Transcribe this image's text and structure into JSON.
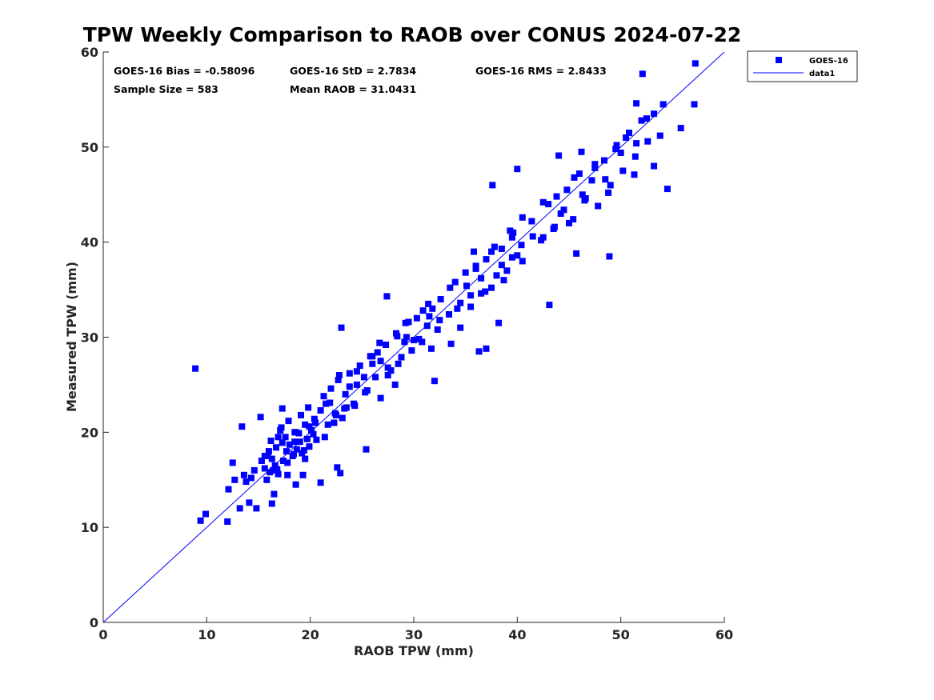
{
  "chart_data": {
    "type": "scatter",
    "title": "TPW Weekly Comparison to RAOB over CONUS 2024-07-22",
    "xlabel": "RAOB TPW (mm)",
    "ylabel": "Measured TPW (mm)",
    "xlim": [
      0,
      60
    ],
    "ylim": [
      0,
      60
    ],
    "xticks": [
      "0",
      "10",
      "20",
      "30",
      "40",
      "50",
      "60"
    ],
    "yticks": [
      "0",
      "10",
      "20",
      "30",
      "40",
      "50",
      "60"
    ],
    "grid": false,
    "legend_position": "outside-top-right",
    "legend": [
      "GOES-16",
      "data1"
    ],
    "colors": {
      "points": "#0000ff",
      "line": "#0000ff",
      "axis": "#262626"
    },
    "stats": {
      "bias": "GOES-16 Bias = -0.58096",
      "std": "GOES-16 StD = 2.7834",
      "rms": "GOES-16 RMS = 2.8433",
      "sample": "Sample Size = 583",
      "mean": "Mean RAOB = 31.0431"
    },
    "reference_line": {
      "name": "data1",
      "x": [
        0,
        60
      ],
      "y": [
        0,
        60
      ]
    },
    "series": [
      {
        "name": "GOES-16",
        "marker": "square",
        "x": [
          8.9,
          9.4,
          9.9,
          12.0,
          12.1,
          12.5,
          12.7,
          13.2,
          13.4,
          13.6,
          13.8,
          14.1,
          14.3,
          14.8,
          15.2,
          15.6,
          16.3,
          16.5,
          17.3,
          18.6,
          19.3,
          21.0,
          22.6,
          22.9,
          23.0,
          25.4,
          26.0,
          26.8,
          27.4,
          28.2,
          29.1,
          31.4,
          32.0,
          33.6,
          35.8,
          36.3,
          37.0,
          37.6,
          38.2,
          39.3,
          40.0,
          40.4,
          43.1,
          44.0,
          45.7,
          46.2,
          48.9,
          51.5,
          52.1,
          53.2,
          54.1,
          54.5,
          55.8,
          57.2,
          57.1,
          15.6,
          15.9,
          16.2,
          16.4,
          16.7,
          16.9,
          17.1,
          17.4,
          17.6,
          17.8,
          18.0,
          18.3,
          18.5,
          18.7,
          19.0,
          19.2,
          19.5,
          19.7,
          19.9,
          20.1,
          20.3,
          15.8,
          16.3,
          16.8,
          17.3,
          17.8,
          18.4,
          18.9,
          19.4,
          19.9,
          20.4,
          16.0,
          16.6,
          17.2,
          17.9,
          18.5,
          19.1,
          19.8,
          20.6,
          21.0,
          21.3,
          21.7,
          22.0,
          22.4,
          22.7,
          23.1,
          23.4,
          23.8,
          24.2,
          24.5,
          21.4,
          21.9,
          22.3,
          22.8,
          23.3,
          23.8,
          24.3,
          24.8,
          25.3,
          25.8,
          26.3,
          26.8,
          27.3,
          27.8,
          28.3,
          28.8,
          29.3,
          29.8,
          30.3,
          30.8,
          31.3,
          31.8,
          32.3,
          25.2,
          26.0,
          26.7,
          27.5,
          28.4,
          29.2,
          30.0,
          30.9,
          31.7,
          32.6,
          33.4,
          34.0,
          34.5,
          35.0,
          35.5,
          36.0,
          36.5,
          37.0,
          37.5,
          38.0,
          38.5,
          39.0,
          39.5,
          40.0,
          34.2,
          35.1,
          36.0,
          36.9,
          37.8,
          38.7,
          39.6,
          40.5,
          41.4,
          42.3,
          43.0,
          43.6,
          44.2,
          44.8,
          45.4,
          46.0,
          46.6,
          47.2,
          47.8,
          48.4,
          49.0,
          49.6,
          50.2,
          50.8,
          51.4,
          52.0,
          52.6,
          53.2,
          53.8,
          42.5,
          43.8,
          45.0,
          46.3,
          47.5,
          48.8,
          50.0,
          51.3,
          52.5,
          14.6,
          15.3,
          16.1,
          16.9,
          17.7,
          18.6,
          19.5,
          20.5,
          21.5,
          22.5,
          23.5,
          24.5,
          25.5,
          26.5,
          27.5,
          28.5,
          29.5,
          30.5,
          31.5,
          32.5,
          33.5,
          34.5,
          35.5,
          36.5,
          37.5,
          38.5,
          39.5,
          40.5,
          41.5,
          42.5,
          43.5,
          44.5,
          45.5,
          46.5,
          47.5,
          48.5,
          49.5,
          50.5,
          51.5
        ],
        "y": [
          26.7,
          10.7,
          11.4,
          10.6,
          14.0,
          16.8,
          15.0,
          12.0,
          20.6,
          15.5,
          14.8,
          12.6,
          15.2,
          12.0,
          21.6,
          17.5,
          12.5,
          13.5,
          22.5,
          14.5,
          15.5,
          14.7,
          16.3,
          15.7,
          31.0,
          18.2,
          28.0,
          27.5,
          34.3,
          25.0,
          29.5,
          33.5,
          25.4,
          29.3,
          39.0,
          28.5,
          28.8,
          46.0,
          31.5,
          41.2,
          47.7,
          39.7,
          33.4,
          49.1,
          38.8,
          49.5,
          38.5,
          54.6,
          57.7,
          48.0,
          54.5,
          45.6,
          52.0,
          58.8,
          54.5,
          16.2,
          17.5,
          19.1,
          16.0,
          18.4,
          15.6,
          20.2,
          17.0,
          19.5,
          16.8,
          18.7,
          17.5,
          20.0,
          18.2,
          19.0,
          17.8,
          20.8,
          19.3,
          18.5,
          20.2,
          19.8,
          15.0,
          17.2,
          16.1,
          18.9,
          15.5,
          17.7,
          19.9,
          18.1,
          20.6,
          21.4,
          18.0,
          16.5,
          20.5,
          21.2,
          19.0,
          21.8,
          22.6,
          19.2,
          22.3,
          23.8,
          20.8,
          24.6,
          22.0,
          25.5,
          21.5,
          24.0,
          26.2,
          23.0,
          25.0,
          19.5,
          23.1,
          21.0,
          26.0,
          22.5,
          24.8,
          22.8,
          27.0,
          24.2,
          28.0,
          25.8,
          23.6,
          29.2,
          26.5,
          30.4,
          27.9,
          30.0,
          28.6,
          32.0,
          29.5,
          31.2,
          33.0,
          30.8,
          25.8,
          27.2,
          29.4,
          26.0,
          30.1,
          31.5,
          29.7,
          32.8,
          28.8,
          34.0,
          32.4,
          35.8,
          31.0,
          36.8,
          33.2,
          37.5,
          34.6,
          38.2,
          35.2,
          36.5,
          39.3,
          37.0,
          40.5,
          38.6,
          33.0,
          35.4,
          37.2,
          34.8,
          39.5,
          36.0,
          41.0,
          38.0,
          42.2,
          40.2,
          44.0,
          41.6,
          43.0,
          45.5,
          42.4,
          47.2,
          44.6,
          46.5,
          43.8,
          48.6,
          46.0,
          50.2,
          47.5,
          51.5,
          49.0,
          52.8,
          50.6,
          53.5,
          51.2,
          40.5,
          44.8,
          42.0,
          45.0,
          47.8,
          45.2,
          49.4,
          47.1,
          53.0,
          16.0,
          17.0,
          15.8,
          19.5,
          18.0,
          20.0,
          17.2,
          21.0,
          23.0,
          21.8,
          22.6,
          26.4,
          24.4,
          28.4,
          26.8,
          27.2,
          31.6,
          29.8,
          32.2,
          31.8,
          35.2,
          33.6,
          34.4,
          36.2,
          39.0,
          37.6,
          38.4,
          42.6,
          40.6,
          44.2,
          41.4,
          43.4,
          46.8,
          44.4,
          48.2,
          46.6,
          49.8,
          51.0,
          50.4
        ]
      }
    ]
  }
}
